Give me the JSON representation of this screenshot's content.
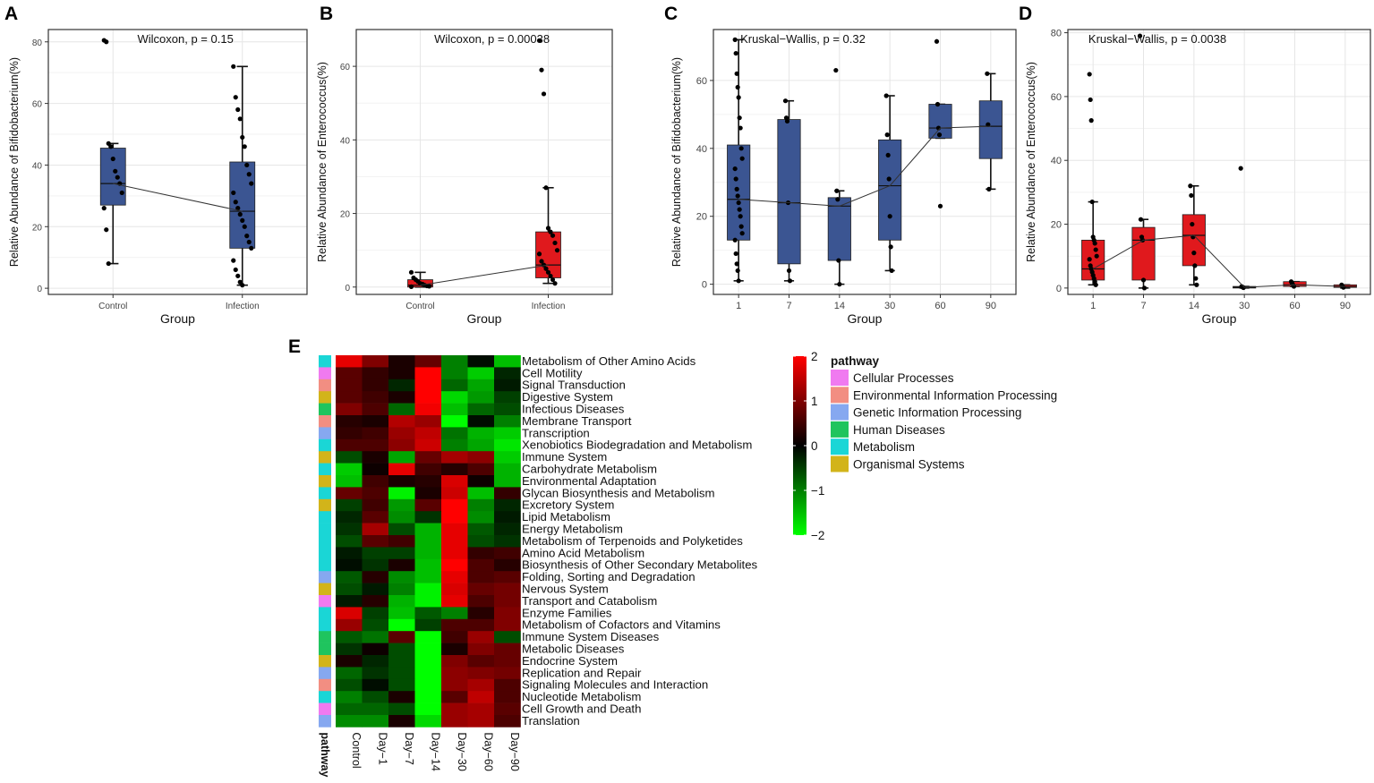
{
  "figure": {
    "panels": [
      {
        "letter": "A",
        "test_label": "Wilcoxon, p = 0.15",
        "xlabel": "Group",
        "ylabel": "Relative Abundance of Bifidobacterium(%)"
      },
      {
        "letter": "B",
        "test_label": "Wilcoxon, p = 0.00038",
        "xlabel": "Group",
        "ylabel": "Relative Abundance of Enterococcus(%)"
      },
      {
        "letter": "C",
        "test_label": "Kruskal−Wallis, p = 0.32",
        "xlabel": "Group",
        "ylabel": "Relative Abundance of Bifidobacterium(%)"
      },
      {
        "letter": "D",
        "test_label": "Kruskal−Wallis, p = 0.0038",
        "xlabel": "Group",
        "ylabel": "Relative Abundance of Enterococcus(%)"
      },
      {
        "letter": "E"
      }
    ]
  },
  "colors": {
    "blue_box": "#3b5592",
    "red_box": "#e0191d",
    "grid": "#e6e6e6",
    "frame": "#333333"
  },
  "chart_data": [
    {
      "type": "box",
      "panel": "A",
      "title": "Wilcoxon, p = 0.15",
      "xlabel": "Group",
      "ylabel": "Relative Abundance of Bifidobacterium(%)",
      "ylim": [
        -2,
        84
      ],
      "yticks": [
        0,
        20,
        40,
        60,
        80
      ],
      "grid": true,
      "categories": [
        "Control",
        "Infection"
      ],
      "box_color": "#3b5592",
      "boxes": [
        {
          "q1": 27,
          "median": 34,
          "q3": 45.5,
          "whisker_low": 8,
          "whisker_high": 47,
          "points": [
            80.5,
            80,
            47,
            46,
            42,
            38,
            36,
            34,
            31,
            26,
            19,
            8
          ]
        },
        {
          "q1": 13,
          "median": 25,
          "q3": 41,
          "whisker_low": 1,
          "whisker_high": 72,
          "points": [
            72,
            62,
            58,
            55,
            49,
            46,
            40,
            37,
            34,
            31,
            28,
            26,
            24,
            22,
            20,
            17,
            15,
            13,
            9,
            6,
            4,
            2,
            1
          ]
        }
      ],
      "connect_medians": true
    },
    {
      "type": "box",
      "panel": "B",
      "title": "Wilcoxon, p = 0.00038",
      "xlabel": "Group",
      "ylabel": "Relative Abundance of Enterococcus(%)",
      "ylim": [
        -2,
        70
      ],
      "yticks": [
        0,
        20,
        40,
        60
      ],
      "grid": true,
      "categories": [
        "Control",
        "Infection"
      ],
      "box_color": "#e0191d",
      "boxes": [
        {
          "q1": 0,
          "median": 0.5,
          "q3": 2,
          "whisker_low": 0,
          "whisker_high": 4,
          "points": [
            4,
            2.5,
            2,
            1.5,
            1,
            0.8,
            0.5,
            0.3,
            0.2,
            0.1
          ]
        },
        {
          "q1": 2.5,
          "median": 6,
          "q3": 15,
          "whisker_low": 1,
          "whisker_high": 27,
          "points": [
            67,
            59,
            52.5,
            27,
            16,
            15,
            14,
            12,
            10,
            9,
            7,
            6,
            5,
            4,
            3,
            2,
            1
          ]
        }
      ],
      "connect_medians": true
    },
    {
      "type": "box",
      "panel": "C",
      "title": "Kruskal−Wallis, p = 0.32",
      "xlabel": "Group",
      "ylabel": "Relative Abundance of Bifidobacterium(%)",
      "ylim": [
        -3,
        75
      ],
      "yticks": [
        0,
        20,
        40,
        60
      ],
      "grid": true,
      "categories": [
        "1",
        "7",
        "14",
        "30",
        "60",
        "90"
      ],
      "box_color": "#3b5592",
      "boxes": [
        {
          "q1": 13,
          "median": 25,
          "q3": 41,
          "whisker_low": 1,
          "whisker_high": 72,
          "points": [
            72,
            68,
            62,
            58,
            55,
            49,
            46,
            40,
            37,
            34,
            31,
            28,
            26,
            24,
            22,
            20,
            17,
            15,
            13,
            9,
            6,
            4,
            1
          ]
        },
        {
          "q1": 6,
          "median": 24,
          "q3": 48.5,
          "whisker_low": 1,
          "whisker_high": 54,
          "points": [
            54,
            49,
            48,
            24,
            4,
            1
          ]
        },
        {
          "q1": 7,
          "median": 23,
          "q3": 25.5,
          "whisker_low": 0,
          "whisker_high": 27.5,
          "points": [
            63,
            27.5,
            25,
            7,
            0
          ]
        },
        {
          "q1": 13,
          "median": 29,
          "q3": 42.5,
          "whisker_low": 4,
          "whisker_high": 55.5,
          "points": [
            55.5,
            44,
            38,
            31,
            20,
            11,
            4
          ]
        },
        {
          "q1": 43,
          "median": 46,
          "q3": 53,
          "whisker_low": 43,
          "whisker_high": 53,
          "points": [
            71.5,
            53,
            46,
            44,
            23
          ]
        },
        {
          "q1": 37,
          "median": 46.5,
          "q3": 54,
          "whisker_low": 28,
          "whisker_high": 62,
          "points": [
            62,
            47,
            28
          ]
        }
      ],
      "connect_medians": true
    },
    {
      "type": "box",
      "panel": "D",
      "title": "Kruskal−Wallis, p = 0.0038",
      "xlabel": "Group",
      "ylabel": "Relative Abundance of Enterococcus(%)",
      "ylim": [
        -2,
        81
      ],
      "yticks": [
        0,
        20,
        40,
        60,
        80
      ],
      "grid": true,
      "categories": [
        "1",
        "7",
        "14",
        "30",
        "60",
        "90"
      ],
      "box_color": "#e0191d",
      "boxes": [
        {
          "q1": 2.5,
          "median": 6,
          "q3": 15,
          "whisker_low": 1,
          "whisker_high": 27,
          "points": [
            67,
            59,
            52.5,
            27,
            16,
            15,
            14,
            12,
            10,
            9,
            7,
            6,
            5,
            4,
            3,
            2,
            1
          ]
        },
        {
          "q1": 2.5,
          "median": 15,
          "q3": 19,
          "whisker_low": 0,
          "whisker_high": 21.5,
          "points": [
            79,
            21.5,
            16,
            15,
            2.5,
            0
          ]
        },
        {
          "q1": 7,
          "median": 16.5,
          "q3": 23,
          "whisker_low": 1,
          "whisker_high": 32,
          "points": [
            32,
            29,
            20,
            16,
            11,
            7,
            3,
            1
          ]
        },
        {
          "q1": 0,
          "median": 0.2,
          "q3": 0.5,
          "whisker_low": 0,
          "whisker_high": 0.5,
          "points": [
            37.5,
            0.5,
            0.3,
            0.1
          ]
        },
        {
          "q1": 0.5,
          "median": 1,
          "q3": 2,
          "whisker_low": 0.5,
          "whisker_high": 2,
          "points": [
            2,
            1.5,
            1,
            0.5
          ]
        },
        {
          "q1": 0.2,
          "median": 0.5,
          "q3": 1,
          "whisker_low": 0,
          "whisker_high": 1,
          "points": [
            1,
            0.5,
            0.2
          ]
        }
      ],
      "connect_medians": true
    },
    {
      "type": "heatmap",
      "panel": "E",
      "columns": [
        "Control",
        "Day−1",
        "Day−7",
        "Day−14",
        "Day−30",
        "Day−60",
        "Day−90"
      ],
      "row_annotation_label": "pathway",
      "rows": [
        {
          "name": "Metabolism of Other Amino Acids",
          "pathway": "Metabolism"
        },
        {
          "name": "Cell Motility",
          "pathway": "Cellular Processes"
        },
        {
          "name": "Signal Transduction",
          "pathway": "Environmental Information Processing"
        },
        {
          "name": "Digestive System",
          "pathway": "Organismal Systems"
        },
        {
          "name": "Infectious Diseases",
          "pathway": "Human Diseases"
        },
        {
          "name": "Membrane Transport",
          "pathway": "Environmental Information Processing"
        },
        {
          "name": "Transcription",
          "pathway": "Genetic Information Processing"
        },
        {
          "name": "Xenobiotics Biodegradation and Metabolism",
          "pathway": "Metabolism"
        },
        {
          "name": "Immune System",
          "pathway": "Organismal Systems"
        },
        {
          "name": "Carbohydrate Metabolism",
          "pathway": "Metabolism"
        },
        {
          "name": "Environmental Adaptation",
          "pathway": "Organismal Systems"
        },
        {
          "name": "Glycan Biosynthesis and Metabolism",
          "pathway": "Metabolism"
        },
        {
          "name": "Excretory System",
          "pathway": "Organismal Systems"
        },
        {
          "name": "Lipid Metabolism",
          "pathway": "Metabolism"
        },
        {
          "name": "Energy Metabolism",
          "pathway": "Metabolism"
        },
        {
          "name": "Metabolism of Terpenoids and Polyketides",
          "pathway": "Metabolism"
        },
        {
          "name": "Amino Acid Metabolism",
          "pathway": "Metabolism"
        },
        {
          "name": "Biosynthesis of Other Secondary Metabolites",
          "pathway": "Metabolism"
        },
        {
          "name": "Folding, Sorting and Degradation",
          "pathway": "Genetic Information Processing"
        },
        {
          "name": "Nervous System",
          "pathway": "Organismal Systems"
        },
        {
          "name": "Transport and Catabolism",
          "pathway": "Cellular Processes"
        },
        {
          "name": "Enzyme Families",
          "pathway": "Metabolism"
        },
        {
          "name": "Metabolism of Cofactors and Vitamins",
          "pathway": "Metabolism"
        },
        {
          "name": "Immune System Diseases",
          "pathway": "Human Diseases"
        },
        {
          "name": "Metabolic Diseases",
          "pathway": "Human Diseases"
        },
        {
          "name": "Endocrine System",
          "pathway": "Organismal Systems"
        },
        {
          "name": "Replication and Repair",
          "pathway": "Genetic Information Processing"
        },
        {
          "name": "Signaling Molecules and Interaction",
          "pathway": "Environmental Information Processing"
        },
        {
          "name": "Nucleotide Metabolism",
          "pathway": "Metabolism"
        },
        {
          "name": "Cell Growth and Death",
          "pathway": "Cellular Processes"
        },
        {
          "name": "Translation",
          "pathway": "Genetic Information Processing"
        }
      ],
      "values": [
        [
          1.8,
          1.0,
          0.2,
          0.8,
          -1.0,
          -0.1,
          -1.5
        ],
        [
          0.7,
          0.4,
          0.2,
          2.0,
          -1.0,
          -1.6,
          -0.3
        ],
        [
          0.7,
          0.4,
          -0.3,
          2.0,
          -0.8,
          -1.3,
          -0.2
        ],
        [
          0.7,
          0.5,
          0.2,
          2.0,
          -1.7,
          -1.2,
          -0.5
        ],
        [
          1.0,
          0.6,
          -0.8,
          1.9,
          -1.5,
          -0.8,
          -0.6
        ],
        [
          0.3,
          0.2,
          1.4,
          1.2,
          -2.0,
          -0.1,
          -1.0
        ],
        [
          0.4,
          0.5,
          1.2,
          1.5,
          -0.9,
          -1.4,
          -1.6
        ],
        [
          0.6,
          0.6,
          1.1,
          1.6,
          -1.0,
          -1.3,
          -1.8
        ],
        [
          -0.6,
          0.2,
          -1.3,
          0.8,
          1.3,
          1.1,
          -1.6
        ],
        [
          -1.6,
          0.1,
          1.8,
          0.5,
          0.3,
          0.6,
          -1.4
        ],
        [
          -1.5,
          0.5,
          0.2,
          0.3,
          1.7,
          0.1,
          -1.4
        ],
        [
          0.8,
          0.6,
          -1.9,
          0.2,
          1.6,
          -1.5,
          0.4
        ],
        [
          -0.5,
          0.5,
          -1.2,
          0.7,
          2.0,
          -1.0,
          -0.3
        ],
        [
          -0.3,
          0.7,
          -1.1,
          -0.4,
          2.0,
          -1.1,
          -0.2
        ],
        [
          -0.4,
          1.3,
          -0.6,
          -1.4,
          1.8,
          -0.7,
          -0.3
        ],
        [
          -0.6,
          0.7,
          0.5,
          -1.4,
          1.8,
          -0.6,
          -0.4
        ],
        [
          -0.2,
          -0.5,
          -0.5,
          -1.4,
          1.8,
          0.4,
          0.5
        ],
        [
          -0.1,
          -0.4,
          0.2,
          -1.5,
          2.0,
          0.6,
          0.3
        ],
        [
          -0.7,
          0.3,
          -1.1,
          -1.5,
          1.8,
          0.6,
          0.7
        ],
        [
          -0.6,
          -0.2,
          -1.0,
          -1.9,
          1.7,
          0.8,
          0.9
        ],
        [
          -0.2,
          0.3,
          -1.4,
          -1.9,
          1.8,
          0.6,
          0.9
        ],
        [
          1.7,
          -0.5,
          -1.5,
          -0.7,
          -1.0,
          0.3,
          1.0
        ],
        [
          1.2,
          -0.6,
          -2.0,
          -0.5,
          0.6,
          0.6,
          1.0
        ],
        [
          -0.7,
          -0.9,
          0.7,
          -2.0,
          0.5,
          1.2,
          -0.6
        ],
        [
          -0.4,
          0.1,
          -0.6,
          -2.0,
          0.2,
          1.0,
          0.8
        ],
        [
          0.2,
          -0.3,
          -0.6,
          -2.0,
          1.0,
          0.7,
          0.8
        ],
        [
          -0.8,
          -0.4,
          -0.6,
          -2.0,
          1.1,
          1.0,
          0.9
        ],
        [
          -0.6,
          -0.1,
          -0.6,
          -2.0,
          1.1,
          1.3,
          0.6
        ],
        [
          -1.0,
          -0.6,
          0.2,
          -2.0,
          0.7,
          1.5,
          0.6
        ],
        [
          -0.8,
          -0.8,
          -0.6,
          -2.0,
          1.2,
          1.3,
          0.7
        ],
        [
          -1.1,
          -1.1,
          0.2,
          -1.7,
          1.2,
          1.3,
          0.6
        ]
      ],
      "scale": {
        "min": -2,
        "max": 2,
        "ticks": [
          2,
          1,
          0,
          -1,
          -2
        ],
        "tick_labels": [
          "2",
          "1",
          "0",
          "−1",
          "−2"
        ],
        "colors": [
          "#00ff00",
          "#000000",
          "#ff0000"
        ]
      },
      "legend": {
        "title": "pathway",
        "entries": [
          {
            "name": "Cellular Processes",
            "color": "#f07af0"
          },
          {
            "name": "Environmental Information Processing",
            "color": "#f28e82"
          },
          {
            "name": "Genetic Information Processing",
            "color": "#86a8f0"
          },
          {
            "name": "Human Diseases",
            "color": "#1fc45e"
          },
          {
            "name": "Metabolism",
            "color": "#1ad6d6"
          },
          {
            "name": "Organismal Systems",
            "color": "#d2b41a"
          }
        ]
      }
    }
  ]
}
